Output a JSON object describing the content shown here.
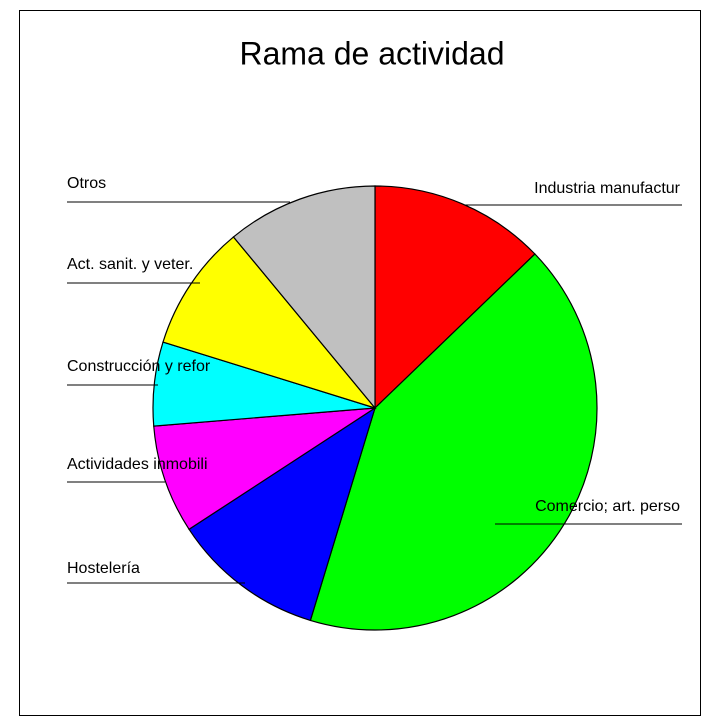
{
  "chart_data": {
    "type": "pie",
    "title": "Rama de actividad",
    "categories": [
      "Industria manufactur",
      "Comercio; art. perso",
      "Hostelería",
      "Actividades inmobili",
      "Construcción y refor",
      "Act. sanit. y veter.",
      "Otros"
    ],
    "values": [
      12.8,
      41.9,
      11.1,
      7.9,
      6.1,
      9.2,
      11.0
    ],
    "colors": [
      "#ff0000",
      "#00ff00",
      "#0000ff",
      "#ff00ff",
      "#00ffff",
      "#ffff00",
      "#c0c0c0"
    ]
  }
}
